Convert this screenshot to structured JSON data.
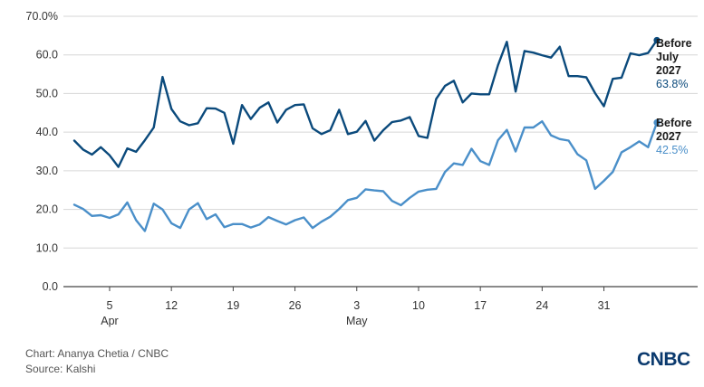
{
  "chart_data": {
    "type": "line",
    "title": "",
    "xlabel": "",
    "ylabel": "",
    "ylim": [
      0,
      70
    ],
    "y_ticks": [
      "0.0",
      "10.0",
      "20.0",
      "30.0",
      "40.0",
      "50.0",
      "60.0",
      "70.0%"
    ],
    "x_ticks": [
      {
        "day": 5,
        "label": "5",
        "sublabel": "Apr"
      },
      {
        "day": 12,
        "label": "12",
        "sublabel": ""
      },
      {
        "day": 19,
        "label": "19",
        "sublabel": ""
      },
      {
        "day": 26,
        "label": "26",
        "sublabel": ""
      },
      {
        "day": 33,
        "label": "3",
        "sublabel": "May"
      },
      {
        "day": 40,
        "label": "10",
        "sublabel": ""
      },
      {
        "day": 47,
        "label": "17",
        "sublabel": ""
      },
      {
        "day": 54,
        "label": "24",
        "sublabel": ""
      },
      {
        "day": 61,
        "label": "31",
        "sublabel": ""
      }
    ],
    "grid": "horizontal",
    "x_days": [
      1,
      2,
      3,
      4,
      5,
      6,
      7,
      8,
      9,
      10,
      11,
      12,
      13,
      14,
      15,
      16,
      17,
      18,
      19,
      20,
      21,
      22,
      23,
      24,
      25,
      26,
      27,
      28,
      29,
      30,
      31,
      32,
      33,
      34,
      35,
      36,
      37,
      38,
      39,
      40,
      41,
      42,
      43,
      44,
      45,
      46,
      47,
      48,
      49,
      50,
      51,
      52,
      53,
      54,
      55,
      56,
      57,
      58,
      59,
      60,
      61,
      62,
      63,
      64,
      65,
      66,
      67
    ],
    "series": [
      {
        "name": "Before July 2027",
        "color": "#0b4a7c",
        "end_label": [
          "Before",
          "July",
          "2027"
        ],
        "end_value": "63.8%",
        "values": [
          37.8,
          35.5,
          34.2,
          36.1,
          34.0,
          31.0,
          35.8,
          34.9,
          37.9,
          41.2,
          54.3,
          46.0,
          42.8,
          41.8,
          42.3,
          46.2,
          46.1,
          45.0,
          37.0,
          47.0,
          43.4,
          46.3,
          47.7,
          42.5,
          45.8,
          47.0,
          47.2,
          41.0,
          39.5,
          40.5,
          45.8,
          39.5,
          40.1,
          42.9,
          37.8,
          40.5,
          42.6,
          43.0,
          43.9,
          39.0,
          38.5,
          48.6,
          52.0,
          53.3,
          47.7,
          50.0,
          49.8,
          49.8,
          57.3,
          63.4,
          50.5,
          61.0,
          60.6,
          59.9,
          59.3,
          62.1,
          54.5,
          54.5,
          54.2,
          50.1,
          46.7,
          53.8,
          54.1,
          60.4,
          59.9,
          60.5,
          63.8
        ]
      },
      {
        "name": "Before 2027",
        "color": "#4a8fc9",
        "end_label": [
          "Before",
          "2027"
        ],
        "end_value": "42.5%",
        "values": [
          21.2,
          20.1,
          18.3,
          18.5,
          17.8,
          18.7,
          21.8,
          17.2,
          14.4,
          21.5,
          20.0,
          16.4,
          15.2,
          20.0,
          21.6,
          17.5,
          18.7,
          15.4,
          16.2,
          16.2,
          15.3,
          16.1,
          18.0,
          17.0,
          16.1,
          17.2,
          17.9,
          15.2,
          16.8,
          18.1,
          20.1,
          22.4,
          23.0,
          25.2,
          24.9,
          24.7,
          22.2,
          21.1,
          23.0,
          24.6,
          25.1,
          25.3,
          29.7,
          31.9,
          31.5,
          35.7,
          32.5,
          31.5,
          37.9,
          40.6,
          35.0,
          41.2,
          41.2,
          42.8,
          39.2,
          38.2,
          37.8,
          34.3,
          32.7,
          25.3,
          27.4,
          29.7,
          34.8,
          36.1,
          37.6,
          36.1,
          42.5
        ]
      }
    ]
  },
  "footer": {
    "credit": "Chart: Ananya Chetia / CNBC",
    "source": "Source: Kalshi",
    "logo_text": "CNBC"
  }
}
